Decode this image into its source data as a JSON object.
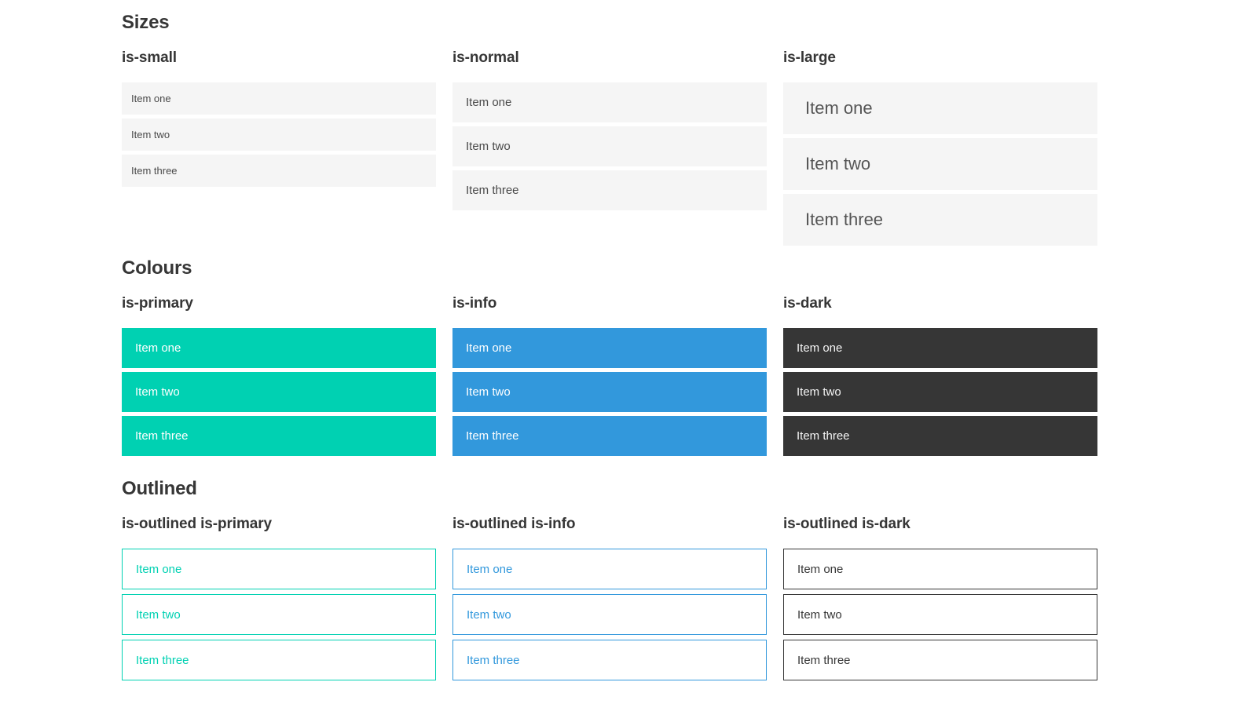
{
  "sections": [
    {
      "title": "Sizes",
      "columns": [
        {
          "label": "is-small",
          "variant": "small",
          "items": [
            "Item one",
            "Item two",
            "Item three"
          ]
        },
        {
          "label": "is-normal",
          "variant": "normal",
          "items": [
            "Item one",
            "Item two",
            "Item three"
          ]
        },
        {
          "label": "is-large",
          "variant": "large",
          "items": [
            "Item one",
            "Item two",
            "Item three"
          ]
        }
      ]
    },
    {
      "title": "Colours",
      "columns": [
        {
          "label": "is-primary",
          "variant": "primary",
          "items": [
            "Item one",
            "Item two",
            "Item three"
          ]
        },
        {
          "label": "is-info",
          "variant": "info",
          "items": [
            "Item one",
            "Item two",
            "Item three"
          ]
        },
        {
          "label": "is-dark",
          "variant": "dark",
          "items": [
            "Item one",
            "Item two",
            "Item three"
          ]
        }
      ]
    },
    {
      "title": "Outlined",
      "columns": [
        {
          "label": "is-outlined is-primary",
          "variant": "out-primary",
          "items": [
            "Item one",
            "Item two",
            "Item three"
          ]
        },
        {
          "label": "is-outlined is-info",
          "variant": "out-info",
          "items": [
            "Item one",
            "Item two",
            "Item three"
          ]
        },
        {
          "label": "is-outlined is-dark",
          "variant": "out-dark",
          "items": [
            "Item one",
            "Item two",
            "Item three"
          ]
        }
      ]
    }
  ],
  "colors": {
    "primary": "#00d1b2",
    "info": "#3298dc",
    "dark": "#363636",
    "item_bg": "#f5f5f5",
    "text": "#4a4a4a",
    "heading": "#363636"
  }
}
